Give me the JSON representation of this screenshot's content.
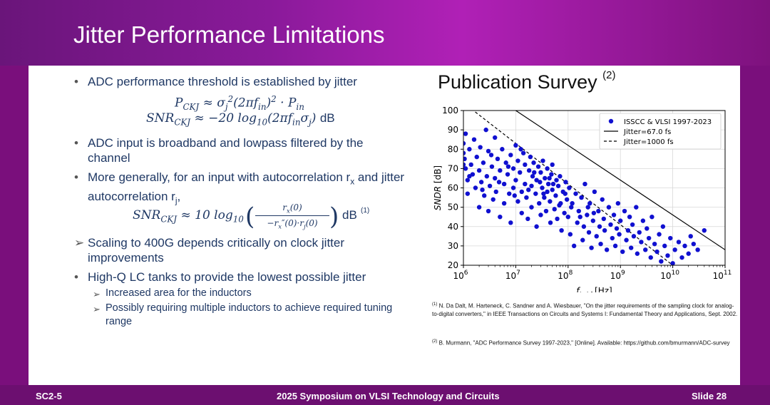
{
  "slide": {
    "title": "Jitter Performance Limitations",
    "footer_left": "SC2-5",
    "footer_center": "2025 Symposium on VLSI Technology and Circuits",
    "footer_right": "Slide 28"
  },
  "bullets": [
    {
      "marker": "•",
      "text": "ADC performance threshold is established by jitter"
    },
    {
      "marker": "•",
      "text": "ADC input is broadband and lowpass filtered by the channel"
    },
    {
      "marker": "•",
      "text": "More generally, for an input with autocorrelation r<sub>x</sub> and jitter autocorrelation r<sub>j</sub>,"
    },
    {
      "marker": "➢",
      "text": "Scaling to 400G depends critically on clock jitter improvements"
    },
    {
      "marker": "•",
      "text": "High-Q LC tanks to provide the lowest possible jitter"
    },
    {
      "marker": "➢",
      "text": "Increased area for the inductors"
    },
    {
      "marker": "➢",
      "text": "Possibly requiring multiple inductors to achieve required tuning range"
    }
  ],
  "equations": {
    "eq1": "P<sub>CKJ</sub> ≈ σ<sub>j</sub><sup>2</sup>(2πf<sub>in</sub>)<sup>2</sup> · P<sub>in</sub>",
    "eq2_lhs": "SNR<sub>CKJ</sub> ≈ −20 log<sub>10</sub>(2πf<sub>in</sub>σ<sub>j</sub>)",
    "eq2_unit": "dB",
    "eq3_lhs": "SNR<sub>CKJ</sub> ≈ 10 log<sub>10</sub>",
    "eq3_num": "r<sub>x</sub>(0)",
    "eq3_den": "−r<sub>x</sub>″(0)·r<sub>j</sub>(0)",
    "eq3_unit": "dB",
    "eq3_ref": "(1)"
  },
  "survey": {
    "title": "Publication Survey",
    "title_ref": "(2)"
  },
  "references": [
    {
      "num": "(1)",
      "text": "N. Da Dalt, M. Harteneck, C. Sandner and A. Wiesbauer, \"On the jitter requirements of the sampling clock for analog-to-digital converters,\" in IEEE Transactions on Circuits and Systems I: Fundamental Theory and Applications, Sept. 2002."
    },
    {
      "num": "(2)",
      "text": "B. Murmann, \"ADC Performance Survey 1997-2023,\" [Online]. Available: https://github.com/bmurmann/ADC-survey"
    }
  ],
  "colors": {
    "header": "#8a1a9a",
    "footer": "#6c0f70",
    "bullet_text": "#1f3864",
    "points": "#1010d0"
  },
  "chart_data": {
    "type": "scatter",
    "xlabel": "f_in,hf [Hz]",
    "ylabel": "SNDR [dB]",
    "xscale": "log",
    "xlim": [
      1000000,
      100000000000
    ],
    "ylim": [
      20,
      100
    ],
    "x_ticks": [
      {
        "base": "10",
        "exp": "6"
      },
      {
        "base": "10",
        "exp": "7"
      },
      {
        "base": "10",
        "exp": "8"
      },
      {
        "base": "10",
        "exp": "9"
      },
      {
        "base": "10",
        "exp": "10"
      },
      {
        "base": "10",
        "exp": "11"
      }
    ],
    "y_ticks": [
      "20",
      "30",
      "40",
      "50",
      "60",
      "70",
      "80",
      "90",
      "100"
    ],
    "legend": "top-right",
    "legend_entries": [
      "ISSCC & VLSI 1997-2023",
      "Jitter=67.0 fs",
      "Jitter=1000 fs"
    ],
    "lines": [
      {
        "name": "Jitter=67.0 fs",
        "style": "solid",
        "points": [
          [
            10000000,
            100
          ],
          [
            100000000000,
            28
          ]
        ]
      },
      {
        "name": "Jitter=1000 fs",
        "style": "dashed",
        "points": [
          [
            1000000,
            104
          ],
          [
            10000000000,
            20
          ]
        ]
      }
    ],
    "series": [
      {
        "name": "ISSCC & VLSI 1997-2023",
        "points": [
          [
            1000000,
            83
          ],
          [
            1000000,
            78
          ],
          [
            1050000,
            75
          ],
          [
            1100000,
            70
          ],
          [
            1100000,
            88
          ],
          [
            1200000,
            64
          ],
          [
            1200000,
            57
          ],
          [
            1300000,
            80
          ],
          [
            1400000,
            72
          ],
          [
            1500000,
            67
          ],
          [
            1600000,
            85
          ],
          [
            1700000,
            60
          ],
          [
            1800000,
            76
          ],
          [
            2000000,
            69
          ],
          [
            2000000,
            50
          ],
          [
            2100000,
            81
          ],
          [
            2200000,
            63
          ],
          [
            2400000,
            73
          ],
          [
            2500000,
            56
          ],
          [
            2700000,
            90
          ],
          [
            2800000,
            66
          ],
          [
            3000000,
            48
          ],
          [
            3000000,
            79
          ],
          [
            3200000,
            61
          ],
          [
            3500000,
            71
          ],
          [
            3700000,
            54
          ],
          [
            4000000,
            86
          ],
          [
            4000000,
            65
          ],
          [
            4200000,
            58
          ],
          [
            4500000,
            75
          ],
          [
            5000000,
            69
          ],
          [
            5000000,
            45
          ],
          [
            5500000,
            80
          ],
          [
            6000000,
            62
          ],
          [
            6000000,
            52
          ],
          [
            6500000,
            73
          ],
          [
            7000000,
            67
          ],
          [
            7500000,
            57
          ],
          [
            8000000,
            77
          ],
          [
            8000000,
            42
          ],
          [
            9000000,
            70
          ],
          [
            9000000,
            60
          ],
          [
            10000000,
            82
          ],
          [
            10000000,
            64
          ],
          [
            11000000,
            53
          ],
          [
            11000000,
            74
          ],
          [
            12000000,
            68
          ],
          [
            13000000,
            47
          ],
          [
            13000000,
            58
          ],
          [
            14000000,
            78
          ],
          [
            15000000,
            62
          ],
          [
            15000000,
            72
          ],
          [
            16000000,
            55
          ],
          [
            17000000,
            44
          ],
          [
            18000000,
            69
          ],
          [
            19000000,
            76
          ],
          [
            20000000,
            61
          ],
          [
            20000000,
            50
          ],
          [
            21000000,
            66
          ],
          [
            22000000,
            73
          ],
          [
            24000000,
            57
          ],
          [
            25000000,
            64
          ],
          [
            25000000,
            40
          ],
          [
            27000000,
            71
          ],
          [
            28000000,
            52
          ],
          [
            30000000,
            68
          ],
          [
            30000000,
            46
          ],
          [
            32000000,
            60
          ],
          [
            33000000,
            74
          ],
          [
            35000000,
            55
          ],
          [
            36000000,
            65
          ],
          [
            38000000,
            48
          ],
          [
            40000000,
            70
          ],
          [
            40000000,
            58
          ],
          [
            42000000,
            62
          ],
          [
            45000000,
            53
          ],
          [
            46000000,
            42
          ],
          [
            48000000,
            67
          ],
          [
            50000000,
            59
          ],
          [
            50000000,
            72
          ],
          [
            55000000,
            49
          ],
          [
            58000000,
            56
          ],
          [
            60000000,
            64
          ],
          [
            62000000,
            44
          ],
          [
            65000000,
            61
          ],
          [
            68000000,
            51
          ],
          [
            70000000,
            66
          ],
          [
            75000000,
            38
          ],
          [
            80000000,
            58
          ],
          [
            85000000,
            47
          ],
          [
            90000000,
            63
          ],
          [
            95000000,
            54
          ],
          [
            100000000,
            45
          ],
          [
            105000000,
            60
          ],
          [
            110000000,
            36
          ],
          [
            120000000,
            52
          ],
          [
            130000000,
            30
          ],
          [
            140000000,
            57
          ],
          [
            150000000,
            42
          ],
          [
            160000000,
            48
          ],
          [
            180000000,
            55
          ],
          [
            190000000,
            33
          ],
          [
            200000000,
            40
          ],
          [
            210000000,
            62
          ],
          [
            230000000,
            46
          ],
          [
            250000000,
            37
          ],
          [
            260000000,
            52
          ],
          [
            280000000,
            29
          ],
          [
            300000000,
            43
          ],
          [
            320000000,
            58
          ],
          [
            350000000,
            35
          ],
          [
            380000000,
            48
          ],
          [
            400000000,
            40
          ],
          [
            420000000,
            31
          ],
          [
            450000000,
            54
          ],
          [
            480000000,
            44
          ],
          [
            500000000,
            38
          ],
          [
            550000000,
            28
          ],
          [
            600000000,
            50
          ],
          [
            650000000,
            41
          ],
          [
            700000000,
            34
          ],
          [
            750000000,
            46
          ],
          [
            800000000,
            30
          ],
          [
            850000000,
            39
          ],
          [
            900000000,
            52
          ],
          [
            950000000,
            36
          ],
          [
            1000000000,
            43
          ],
          [
            1100000000,
            27
          ],
          [
            1200000000,
            48
          ],
          [
            1300000000,
            33
          ],
          [
            1400000000,
            38
          ],
          [
            1500000000,
            45
          ],
          [
            1600000000,
            29
          ],
          [
            1700000000,
            41
          ],
          [
            1800000000,
            35
          ],
          [
            2000000000,
            50
          ],
          [
            2100000000,
            26
          ],
          [
            2300000000,
            37
          ],
          [
            2500000000,
            32
          ],
          [
            2700000000,
            43
          ],
          [
            3000000000,
            28
          ],
          [
            3200000000,
            39
          ],
          [
            3500000000,
            34
          ],
          [
            3800000000,
            24
          ],
          [
            4000000000,
            45
          ],
          [
            4500000000,
            31
          ],
          [
            5000000000,
            27
          ],
          [
            5500000000,
            36
          ],
          [
            6000000000,
            22
          ],
          [
            6500000000,
            40
          ],
          [
            7000000000,
            30
          ],
          [
            8000000000,
            25
          ],
          [
            9000000000,
            34
          ],
          [
            10000000000,
            21
          ],
          [
            11000000000,
            28
          ],
          [
            13000000000,
            32
          ],
          [
            15000000000,
            24
          ],
          [
            17000000000,
            30
          ],
          [
            20000000000,
            26
          ],
          [
            22000000000,
            35
          ],
          [
            25000000000,
            31
          ],
          [
            30000000000,
            28
          ],
          [
            40000000000,
            38
          ],
          [
            1000000,
            72
          ],
          [
            1300000,
            66
          ],
          [
            2300000,
            59
          ],
          [
            3400000,
            77
          ],
          [
            4800000,
            63
          ],
          [
            7200000,
            71
          ],
          [
            9500000,
            56
          ],
          [
            12500000,
            80
          ],
          [
            17500000,
            59
          ],
          [
            22500000,
            68
          ],
          [
            29000000,
            63
          ],
          [
            34000000,
            57
          ],
          [
            44000000,
            65
          ],
          [
            52000000,
            62
          ],
          [
            72000000,
            52
          ],
          [
            88000000,
            57
          ],
          [
            115000000,
            50
          ],
          [
            170000000,
            45
          ],
          [
            240000000,
            50
          ],
          [
            310000000,
            47
          ]
        ]
      }
    ]
  }
}
